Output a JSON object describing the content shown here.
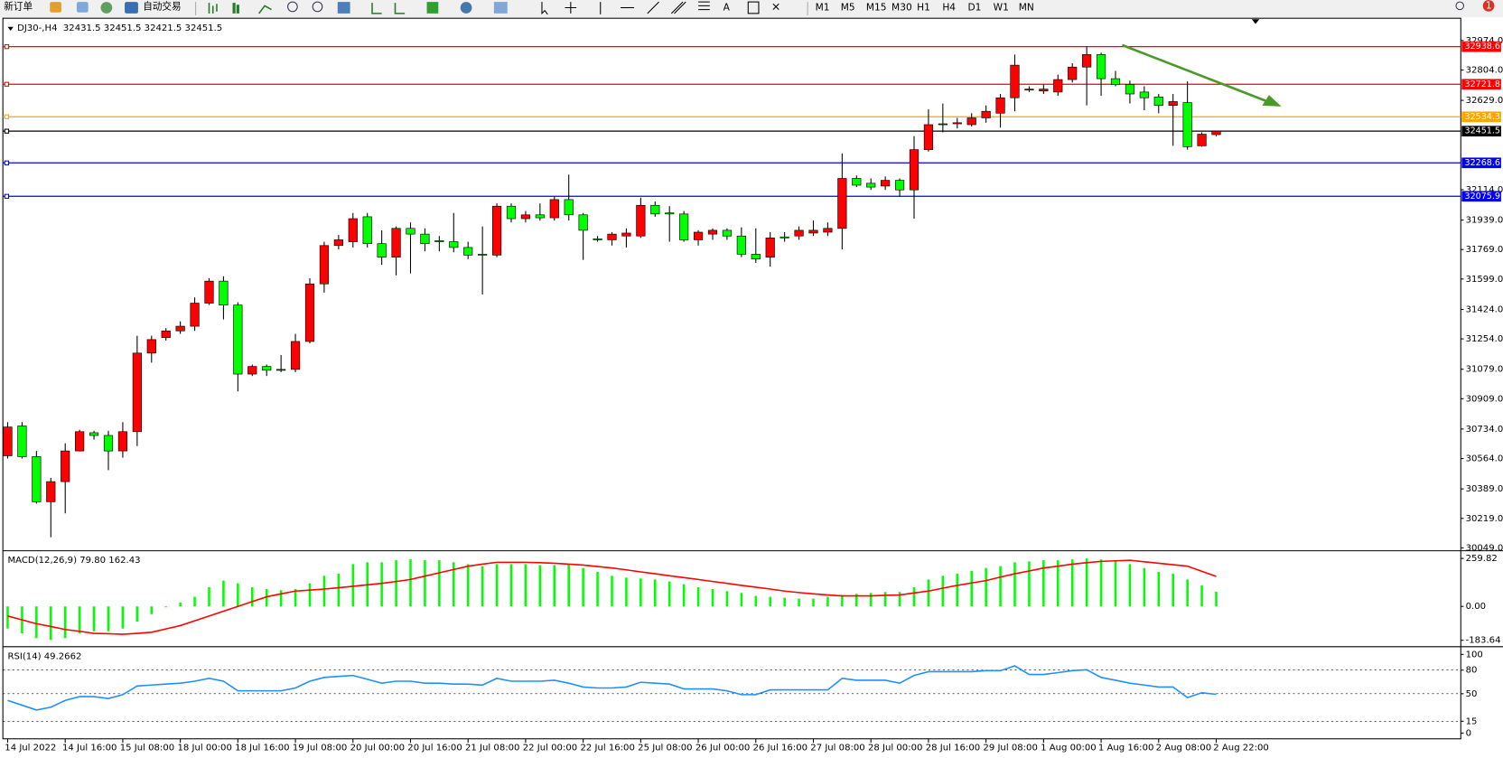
{
  "toolbar": {
    "new_order": "新订单",
    "auto_trading": "自动交易",
    "text_tool": "A",
    "alerts": "1",
    "timeframes": [
      "M1",
      "M5",
      "M15",
      "M30",
      "H1",
      "H4",
      "D1",
      "W1",
      "MN"
    ]
  },
  "chart_data": [
    {
      "type": "candlestick",
      "title": "DJ30-,H4  32431.5 32451.5 32421.5 32451.5",
      "up_color": "#ff0000",
      "down_color": "#00ff00",
      "categories": [
        "14 Jul 2022",
        null,
        null,
        null,
        "14 Jul 16:00",
        null,
        null,
        null,
        "15 Jul 08:00",
        null,
        null,
        null,
        "18 Jul 00:00",
        null,
        null,
        null,
        "18 Jul 16:00",
        null,
        null,
        null,
        "19 Jul 08:00",
        null,
        null,
        null,
        "20 Jul 00:00",
        null,
        null,
        null,
        "20 Jul 16:00",
        null,
        null,
        null,
        "21 Jul 08:00",
        null,
        null,
        null,
        "22 Jul 00:00",
        null,
        null,
        null,
        "22 Jul 16:00",
        null,
        null,
        null,
        "25 Jul 08:00",
        null,
        null,
        null,
        "26 Jul 00:00",
        null,
        null,
        null,
        "26 Jul 16:00",
        null,
        null,
        null,
        "27 Jul 08:00",
        null,
        null,
        null,
        "28 Jul 00:00",
        null,
        null,
        null,
        "28 Jul 16:00",
        null,
        null,
        null,
        "29 Jul 08:00",
        null,
        null,
        null,
        "1 Aug 00:00",
        null,
        null,
        null,
        "1 Aug 16:00",
        null,
        null,
        null,
        "2 Aug 08:00",
        null,
        null,
        null,
        "2 Aug 22:00"
      ],
      "open": [
        30580,
        30752,
        30575,
        30315,
        30431,
        30608,
        30713,
        30697,
        30608,
        30719,
        31172,
        31261,
        31300,
        31327,
        31460,
        31587,
        31449,
        31051,
        31095,
        31073,
        31078,
        31239,
        31571,
        31792,
        31814,
        31958,
        31803,
        31725,
        31891,
        31858,
        31820,
        31814,
        31781,
        31742,
        31737,
        32019,
        31947,
        31969,
        31952,
        32057,
        31969,
        31831,
        31825,
        31847,
        31847,
        32024,
        31980,
        31974,
        31825,
        31858,
        31880,
        31847,
        31742,
        31725,
        31842,
        31847,
        31864,
        31869,
        31891,
        32179,
        32151,
        32135,
        32168,
        32113,
        32345,
        32489,
        32494,
        32489,
        32528,
        32555,
        32644,
        32688,
        32683,
        32677,
        32749,
        32821,
        32893,
        32754,
        32721,
        32677,
        32649,
        32600,
        32616,
        32367,
        32431.5
      ],
      "high": [
        30774,
        30774,
        30608,
        30453,
        30652,
        30730,
        30724,
        30724,
        30774,
        31272,
        31272,
        31316,
        31355,
        31493,
        31604,
        31615,
        31465,
        31106,
        31106,
        31161,
        31283,
        31604,
        31814,
        31853,
        31980,
        31980,
        31880,
        31902,
        31925,
        31891,
        31847,
        31980,
        31814,
        31902,
        32035,
        32035,
        31991,
        32035,
        32074,
        32201,
        31980,
        31847,
        31869,
        31891,
        32068,
        32046,
        32019,
        31991,
        31880,
        31891,
        31891,
        31897,
        31891,
        31869,
        31869,
        31902,
        31936,
        31925,
        32323,
        32196,
        32179,
        32190,
        32179,
        32423,
        32577,
        32611,
        32528,
        32555,
        32600,
        32666,
        32893,
        32710,
        32721,
        32777,
        32843,
        32943,
        32904,
        32799,
        32743,
        32710,
        32666,
        32666,
        32738,
        32445,
        32451.5
      ],
      "low": [
        30564,
        30564,
        30304,
        30110,
        30248,
        30605,
        30674,
        30497,
        30569,
        30636,
        31117,
        31244,
        31283,
        31300,
        31449,
        31366,
        30951,
        31040,
        31040,
        31062,
        31062,
        31228,
        31521,
        31770,
        31781,
        31781,
        31681,
        31620,
        31631,
        31759,
        31759,
        31753,
        31714,
        31510,
        31725,
        31925,
        31925,
        31936,
        31936,
        31936,
        31709,
        31814,
        31792,
        31781,
        31836,
        31958,
        31814,
        31814,
        31792,
        31825,
        31825,
        31725,
        31692,
        31670,
        31814,
        31825,
        31847,
        31847,
        31770,
        32129,
        32113,
        32113,
        32074,
        31947,
        32334,
        32445,
        32467,
        32478,
        32500,
        32472,
        32566,
        32677,
        32666,
        32655,
        32732,
        32600,
        32655,
        32710,
        32611,
        32572,
        32555,
        32367,
        32345,
        32362,
        32421.5
      ],
      "close": [
        30746,
        30575,
        30315,
        30431,
        30608,
        30719,
        30697,
        30608,
        30719,
        31172,
        31250,
        31300,
        31327,
        31460,
        31587,
        31449,
        31051,
        31095,
        31073,
        31078,
        31239,
        31571,
        31792,
        31825,
        31947,
        31803,
        31725,
        31891,
        31858,
        31803,
        31814,
        31781,
        31737,
        31737,
        32019,
        31947,
        31969,
        31952,
        32057,
        31969,
        31880,
        31825,
        31858,
        31864,
        32024,
        31974,
        31974,
        31825,
        31869,
        31880,
        31847,
        31742,
        31714,
        31836,
        31836,
        31880,
        31880,
        31891,
        32179,
        32140,
        32129,
        32168,
        32113,
        32345,
        32489,
        32494,
        32500,
        32528,
        32566,
        32644,
        32832,
        32694,
        32694,
        32749,
        32821,
        32893,
        32754,
        32721,
        32666,
        32644,
        32600,
        32622,
        32362,
        32434,
        32451.5
      ],
      "levels": [
        {
          "value": 32938.6,
          "color": "#ff0000"
        },
        {
          "value": 32721.8,
          "color": "#ff0000"
        },
        {
          "value": 32534.3,
          "color": "#ffa500"
        },
        {
          "value": 32451.5,
          "color": "#000000"
        },
        {
          "value": 32268.6,
          "color": "#0000ff"
        },
        {
          "value": 32075.9,
          "color": "#0000ff"
        }
      ],
      "ylim": [
        30038,
        33097
      ],
      "yticks": [
        {
          "value": 30049,
          "label": "30049.0"
        },
        {
          "value": 30219,
          "label": "30219.0"
        },
        {
          "value": 30389,
          "label": "30389.0"
        },
        {
          "value": 30564,
          "label": "30564.0"
        },
        {
          "value": 30734,
          "label": "30734.0"
        },
        {
          "value": 30909,
          "label": "30909.0"
        },
        {
          "value": 31079,
          "label": "31079.0"
        },
        {
          "value": 31254,
          "label": "31254.0"
        },
        {
          "value": 31424,
          "label": "31424.0"
        },
        {
          "value": 31599,
          "label": "31599.0"
        },
        {
          "value": 31769,
          "label": "31769.0"
        },
        {
          "value": 31939,
          "label": "31939.0"
        },
        {
          "value": 32114,
          "label": "32114.0"
        },
        {
          "value": 32629,
          "label": "32629.0"
        },
        {
          "value": 32804,
          "label": "32804.0"
        },
        {
          "value": 32974,
          "label": "32974.0"
        }
      ]
    },
    {
      "type": "macd",
      "title": "MACD(12,26,9) 79.80 162.43",
      "series": [
        {
          "color": "#00ff00",
          "values": [
            -120,
            -146,
            -172,
            -182,
            -172,
            -146,
            -135,
            -135,
            -120,
            -83,
            -42,
            -5,
            21,
            52,
            104,
            140,
            125,
            104,
            94,
            88,
            94,
            125,
            166,
            177,
            229,
            239,
            239,
            250,
            255,
            250,
            250,
            239,
            229,
            218,
            229,
            229,
            229,
            224,
            224,
            229,
            208,
            187,
            166,
            156,
            151,
            146,
            135,
            120,
            104,
            94,
            83,
            73,
            57,
            52,
            47,
            42,
            42,
            52,
            62,
            68,
            73,
            78,
            78,
            104,
            146,
            166,
            177,
            192,
            208,
            218,
            239,
            244,
            250,
            250,
            255,
            260,
            255,
            244,
            229,
            208,
            187,
            177,
            146,
            114,
            79.8
          ]
        },
        {
          "color": "#ff0000",
          "values": [
            -52,
            -73,
            -94,
            -109,
            -125,
            -135,
            -146,
            -148,
            -151,
            -146,
            -140,
            -122,
            -104,
            -78,
            -52,
            -26,
            0,
            26,
            52,
            68,
            83,
            88,
            94,
            101,
            109,
            117,
            125,
            135,
            146,
            164,
            182,
            200,
            218,
            229,
            239,
            239,
            239,
            237,
            234,
            229,
            224,
            216,
            208,
            198,
            187,
            177,
            166,
            156,
            146,
            135,
            125,
            114,
            104,
            94,
            83,
            75,
            68,
            62,
            57,
            57,
            57,
            60,
            62,
            73,
            83,
            99,
            114,
            127,
            140,
            159,
            177,
            192,
            208,
            218,
            229,
            237,
            244,
            247,
            250,
            242,
            234,
            226,
            218,
            190,
            162.43
          ]
        }
      ],
      "ylim": [
        -213.2,
        296.4
      ],
      "yticks": [
        259.82,
        {
          "value": 0,
          "label": "0.00"
        },
        -183.64
      ]
    },
    {
      "type": "line",
      "title": "RSI(14) 49.2662",
      "dashed_grid": true,
      "series": [
        {
          "color": "#1e90ff",
          "values": [
            41.5,
            35.4,
            29.3,
            32.9,
            41.5,
            46.3,
            46.3,
            43.9,
            48.8,
            59.8,
            61,
            62.2,
            63.4,
            65.9,
            69.5,
            65.9,
            53.7,
            53.7,
            53.7,
            53.7,
            57.3,
            65.9,
            70.7,
            72,
            73.2,
            68.3,
            63.4,
            65.9,
            65.9,
            63.4,
            63.4,
            62.2,
            62.2,
            61,
            69.5,
            65.9,
            65.9,
            65.9,
            67.1,
            63.4,
            58.5,
            57.3,
            57.3,
            58.5,
            64.6,
            63.4,
            62.2,
            56.1,
            56.1,
            56.1,
            53.7,
            48.8,
            48.8,
            54.9,
            54.9,
            54.9,
            54.9,
            54.9,
            69.5,
            67.1,
            67.1,
            67.1,
            63.4,
            73.2,
            78,
            78,
            78,
            78,
            79.3,
            79.3,
            85.4,
            74.4,
            74.4,
            76.8,
            79.3,
            80.5,
            70.7,
            67.1,
            63.4,
            61,
            58.5,
            58.5,
            45.1,
            51.2,
            49.2662
          ]
        }
      ],
      "ylim": [
        0,
        100
      ],
      "yticks": [
        100,
        80,
        50,
        15,
        0
      ]
    }
  ]
}
